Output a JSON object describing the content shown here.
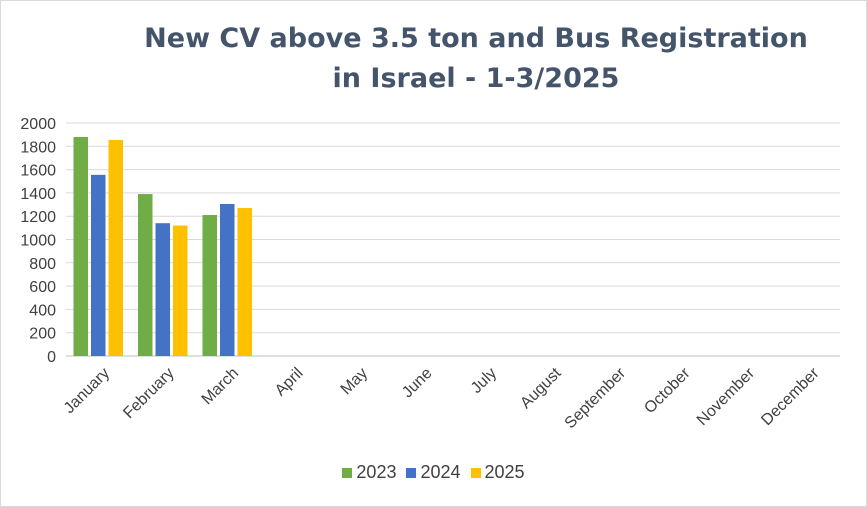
{
  "chart_data": {
    "type": "bar",
    "title_line1": "New CV above 3.5 ton and Bus Registration",
    "title_line2": "in Israel - 1-3/2025",
    "categories": [
      "January",
      "February",
      "March",
      "April",
      "May",
      "June",
      "July",
      "August",
      "September",
      "October",
      "November",
      "December"
    ],
    "series": [
      {
        "name": "2023",
        "color": "#70ad47",
        "values": [
          1880,
          1390,
          1210,
          null,
          null,
          null,
          null,
          null,
          null,
          null,
          null,
          null
        ]
      },
      {
        "name": "2024",
        "color": "#4472c4",
        "values": [
          1555,
          1140,
          1305,
          null,
          null,
          null,
          null,
          null,
          null,
          null,
          null,
          null
        ]
      },
      {
        "name": "2025",
        "color": "#ffc000",
        "values": [
          1855,
          1120,
          1270,
          null,
          null,
          null,
          null,
          null,
          null,
          null,
          null,
          null
        ]
      }
    ],
    "yticks": [
      "0",
      "200",
      "400",
      "600",
      "800",
      "1000",
      "1200",
      "1400",
      "1600",
      "1800",
      "2000"
    ],
    "ylim": [
      0,
      2000
    ],
    "grid": true,
    "legend_position": "bottom"
  }
}
